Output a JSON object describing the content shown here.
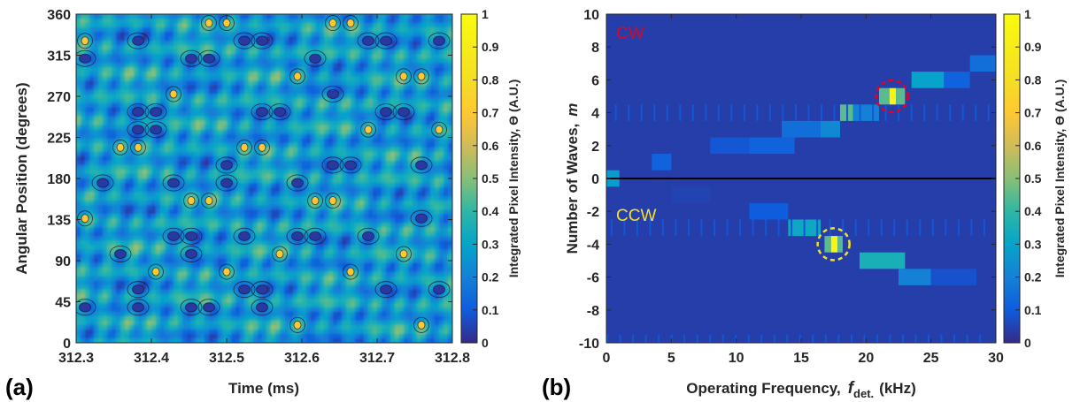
{
  "colors": {
    "parula_low": "#352a87",
    "parula_high": "#f9fb0e",
    "cw": "#e8001c",
    "ccw": "#f5e023"
  },
  "panels": {
    "a": "(a)",
    "b": "(b)"
  },
  "chart_data": [
    {
      "type": "heatmap",
      "panel": "(a)",
      "title": "",
      "xlabel": "Time (ms)",
      "ylabel": "Angular Position (degrees)",
      "xlim": [
        312.3,
        312.8
      ],
      "ylim": [
        0,
        360
      ],
      "xticks": [
        "312.3",
        "312.4",
        "312.5",
        "312.6",
        "312.7",
        "312.8"
      ],
      "yticks": [
        "0",
        "45",
        "90",
        "135",
        "180",
        "225",
        "270",
        "315",
        "360"
      ],
      "colorbar": {
        "label": "Integrated Pixel Intensity, ϴ (A.U.)",
        "range": [
          0,
          1
        ],
        "ticks": [
          "0",
          "0.1",
          "0.2",
          "0.3",
          "0.4",
          "0.5",
          "0.6",
          "0.7",
          "0.8",
          "0.9",
          "1"
        ]
      },
      "style": "filled contour of a rotating wave pattern, mean intensity approx 0.25, peaks approx 0.75",
      "grid": false
    },
    {
      "type": "heatmap",
      "panel": "(b)",
      "title": "",
      "xlabel": "Operating Frequency,",
      "xlabel_symbol": "f",
      "xlabel_subscript": "det.",
      "xlabel_unit": "(kHz)",
      "ylabel": "Number of Waves,",
      "ylabel_symbol": "m",
      "xlim": [
        0,
        30
      ],
      "ylim": [
        -10,
        10
      ],
      "xticks": [
        "0",
        "5",
        "10",
        "15",
        "20",
        "25",
        "30"
      ],
      "yticks": [
        "-10",
        "-8",
        "-6",
        "-4",
        "-2",
        "0",
        "2",
        "4",
        "6",
        "8",
        "10"
      ],
      "colorbar": {
        "label": "Integrated Pixel Intensity, ϴ (A.U.)",
        "range": [
          0,
          1
        ],
        "ticks": [
          "0",
          "0.1",
          "0.2",
          "0.3",
          "0.4",
          "0.5",
          "0.6",
          "0.7",
          "0.8",
          "0.9",
          "1"
        ]
      },
      "annotations": [
        {
          "text": "CW",
          "color": "#e8001c"
        },
        {
          "text": "CCW",
          "color": "#f5e023"
        }
      ],
      "zero_line_at_m": 0,
      "highlight": [
        {
          "label": "CW peak",
          "x": 22.0,
          "m": 5,
          "value": 0.95,
          "circle_color": "#e8001c"
        },
        {
          "label": "CCW peak",
          "x": 17.5,
          "m": -4,
          "value": 0.95,
          "circle_color": "#f5e023"
        }
      ],
      "cells": [
        {
          "m": 0,
          "x0": 0,
          "x1": 1.0,
          "v": 0.28
        },
        {
          "m": 1,
          "x0": 3.5,
          "x1": 5.0,
          "v": 0.12
        },
        {
          "m": 2,
          "x0": 8,
          "x1": 11,
          "v": 0.09
        },
        {
          "m": 2,
          "x0": 11,
          "x1": 14.5,
          "v": 0.12
        },
        {
          "m": 3,
          "x0": 13.5,
          "x1": 16.5,
          "v": 0.15
        },
        {
          "m": 3,
          "x0": 16.5,
          "x1": 18,
          "v": 0.22
        },
        {
          "m": 4,
          "x0": 18,
          "x1": 19,
          "v": 0.45
        },
        {
          "m": 4,
          "x0": 19,
          "x1": 21,
          "v": 0.2
        },
        {
          "m": 5,
          "x0": 21.0,
          "x1": 21.8,
          "v": 0.45
        },
        {
          "m": 5,
          "x0": 21.8,
          "x1": 22.3,
          "v": 0.95
        },
        {
          "m": 5,
          "x0": 22.3,
          "x1": 23.0,
          "v": 0.45
        },
        {
          "m": 6,
          "x0": 23.5,
          "x1": 26.0,
          "v": 0.3
        },
        {
          "m": 6,
          "x0": 26.0,
          "x1": 28.0,
          "v": 0.12
        },
        {
          "m": 7,
          "x0": 28.0,
          "x1": 30.0,
          "v": 0.15
        },
        {
          "m": -1,
          "x0": 5,
          "x1": 8,
          "v": 0.05
        },
        {
          "m": -2,
          "x0": 11.0,
          "x1": 14.0,
          "v": 0.1
        },
        {
          "m": -3,
          "x0": 14.0,
          "x1": 16.5,
          "v": 0.32
        },
        {
          "m": -4,
          "x0": 16.8,
          "x1": 17.3,
          "v": 0.45
        },
        {
          "m": -4,
          "x0": 17.3,
          "x1": 17.8,
          "v": 0.95
        },
        {
          "m": -4,
          "x0": 17.8,
          "x1": 18.2,
          "v": 0.45
        },
        {
          "m": -5,
          "x0": 19.5,
          "x1": 23.0,
          "v": 0.35
        },
        {
          "m": -6,
          "x0": 22.5,
          "x1": 25.0,
          "v": 0.2
        },
        {
          "m": -6,
          "x0": 25.0,
          "x1": 28.5,
          "v": 0.08
        }
      ],
      "background_value": 0.04,
      "grid": false
    }
  ]
}
